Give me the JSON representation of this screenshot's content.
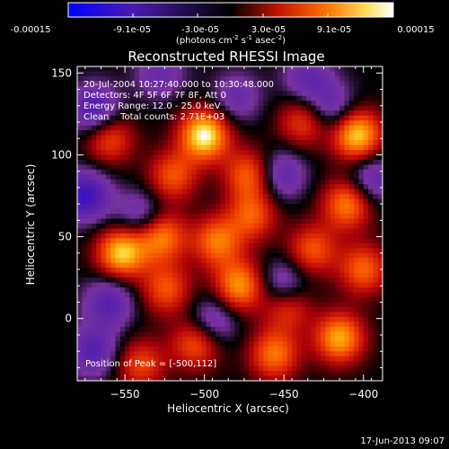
{
  "colorbar": {
    "ticks": [
      "-0.00015",
      "-9.1e-05",
      "-3.0e-05",
      "3.0e-05",
      "9.1e-05",
      "0.00015"
    ],
    "units_main": "(photons cm",
    "units_exp1": "-2",
    "units_mid": " s",
    "units_exp2": "-1",
    "units_tail": " asec",
    "units_exp3": "-2",
    "units_close": ")"
  },
  "chart_data": {
    "type": "heatmap",
    "title": "Reconstructed RHESSI Image",
    "xlabel": "Heliocentric X (arcsec)",
    "ylabel": "Heliocentric Y (arcsec)",
    "xlim": [
      -580,
      -388
    ],
    "ylim": [
      -38,
      154
    ],
    "xticks": [
      -550,
      -500,
      -450,
      -400
    ],
    "xtick_labels": [
      "−550",
      "−500",
      "−450",
      "−400"
    ],
    "yticks": [
      0,
      50,
      100,
      150
    ],
    "ytick_labels": [
      "0",
      "50",
      "100",
      "150"
    ],
    "colorbar_range": [
      -0.00015,
      0.00015
    ],
    "annotations": [
      "20-Jul-2004 10:27:40.000 to 10:30:48.000",
      "Detectors: 4F 5F 6F 7F 8F, Att 0",
      "Energy Range: 12.0 - 25.0 keV",
      "Clean    Total counts: 2.71E+03"
    ],
    "peak_label": "Position of Peak = [-500,112]",
    "peak": [
      -500,
      112
    ],
    "blobs": [
      {
        "x": -500,
        "y": 112,
        "v": 1.0
      },
      {
        "x": -404,
        "y": 112,
        "v": 0.92
      },
      {
        "x": -520,
        "y": 87,
        "v": 0.55
      },
      {
        "x": -472,
        "y": 88,
        "v": 0.6
      },
      {
        "x": -560,
        "y": 110,
        "v": 0.55
      },
      {
        "x": -438,
        "y": 120,
        "v": 0.5
      },
      {
        "x": -492,
        "y": 47,
        "v": 0.65
      },
      {
        "x": -470,
        "y": 63,
        "v": 0.55
      },
      {
        "x": -527,
        "y": 50,
        "v": 0.7
      },
      {
        "x": -410,
        "y": 70,
        "v": 0.7
      },
      {
        "x": -432,
        "y": 42,
        "v": 0.55
      },
      {
        "x": -552,
        "y": 40,
        "v": 0.9
      },
      {
        "x": -478,
        "y": 20,
        "v": 0.75
      },
      {
        "x": -524,
        "y": 18,
        "v": 0.55
      },
      {
        "x": -448,
        "y": 8,
        "v": 0.55
      },
      {
        "x": -400,
        "y": 30,
        "v": 0.6
      },
      {
        "x": -415,
        "y": -12,
        "v": 0.8
      },
      {
        "x": -505,
        "y": -15,
        "v": 0.6
      },
      {
        "x": -456,
        "y": -22,
        "v": 0.65
      },
      {
        "x": -540,
        "y": -28,
        "v": 0.5
      },
      {
        "x": -560,
        "y": 10,
        "v": -0.5
      },
      {
        "x": -569,
        "y": 127,
        "v": -0.6
      },
      {
        "x": -575,
        "y": 75,
        "v": -0.7
      },
      {
        "x": -540,
        "y": 63,
        "v": -0.4
      },
      {
        "x": -452,
        "y": 88,
        "v": -0.45
      },
      {
        "x": -528,
        "y": 150,
        "v": -0.35
      },
      {
        "x": -435,
        "y": 146,
        "v": -0.4
      },
      {
        "x": -450,
        "y": 20,
        "v": -0.5
      },
      {
        "x": -495,
        "y": -2,
        "v": -0.45
      },
      {
        "x": -395,
        "y": 85,
        "v": -0.45
      },
      {
        "x": -480,
        "y": 135,
        "v": -0.35
      },
      {
        "x": -420,
        "y": 128,
        "v": -0.4
      },
      {
        "x": -570,
        "y": -20,
        "v": -0.5
      }
    ]
  },
  "footer": {
    "timestamp": "17-Jun-2013 09:07"
  }
}
